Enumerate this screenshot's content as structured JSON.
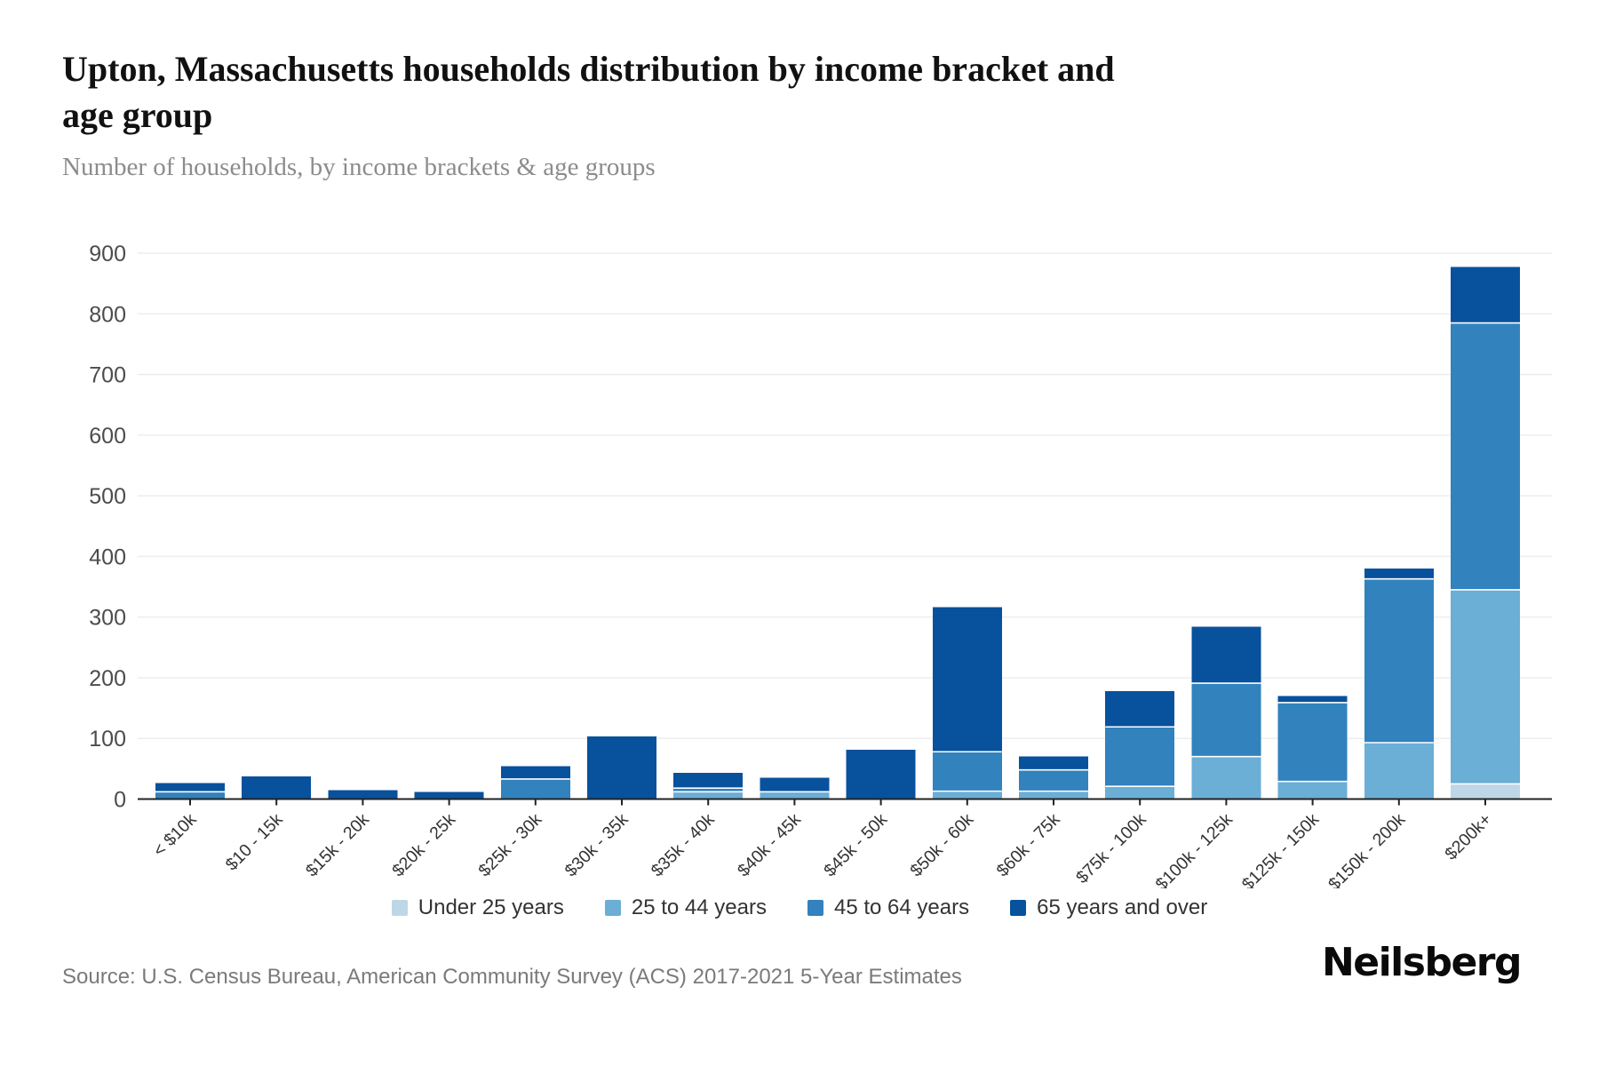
{
  "header": {
    "title": "Upton, Massachusetts households distribution by income bracket and age group",
    "title_lines": [
      "Upton, Massachusetts households distribution by income bracket and",
      "age group"
    ],
    "subtitle": "Number of households, by income brackets & age groups"
  },
  "chart_data": {
    "type": "bar",
    "stacked": true,
    "title": "Upton, Massachusetts households distribution by income bracket and age group",
    "subtitle": "Number of households, by income brackets & age groups",
    "xlabel": "",
    "ylabel": "",
    "ylim": [
      0,
      900
    ],
    "ytick_step": 100,
    "yticks": [
      0,
      100,
      200,
      300,
      400,
      500,
      600,
      700,
      800,
      900
    ],
    "grid": true,
    "legend_position": "bottom",
    "categories": [
      "< $10k",
      "$10 - 15k",
      "$15k - 20k",
      "$20k - 25k",
      "$25k - 30k",
      "$30k - 35k",
      "$35k - 40k",
      "$40k - 45k",
      "$45k - 50k",
      "$50k - 60k",
      "$60k - 75k",
      "$75k - 100k",
      "$100k - 125k",
      "$125k - 150k",
      "$150k - 200k",
      "$200k+"
    ],
    "series": [
      {
        "name": "Under 25 years",
        "color": "#bdd7e7",
        "values": [
          0,
          0,
          0,
          0,
          0,
          0,
          0,
          0,
          0,
          0,
          0,
          0,
          0,
          0,
          0,
          25
        ]
      },
      {
        "name": "25 to 44 years",
        "color": "#6baed6",
        "values": [
          0,
          0,
          0,
          0,
          0,
          0,
          12,
          12,
          0,
          13,
          13,
          21,
          70,
          29,
          93,
          320
        ]
      },
      {
        "name": "45 to 64 years",
        "color": "#3182bd",
        "values": [
          12,
          0,
          0,
          0,
          33,
          0,
          6,
          0,
          0,
          65,
          35,
          98,
          121,
          130,
          270,
          440
        ]
      },
      {
        "name": "65 years and over",
        "color": "#08519c",
        "values": [
          14,
          37,
          15,
          12,
          21,
          103,
          25,
          23,
          81,
          238,
          22,
          59,
          93,
          11,
          17,
          92
        ]
      }
    ],
    "totals": [
      26,
      37,
      15,
      12,
      54,
      103,
      43,
      35,
      81,
      316,
      70,
      178,
      284,
      170,
      380,
      877
    ]
  },
  "colors": {
    "grid": "#ededed",
    "axis": "#222222",
    "ytick_label": "#4c4c4c",
    "xtick_label": "#333333"
  },
  "footer": {
    "source": "Source: U.S. Census Bureau, American Community Survey (ACS) 2017-2021 5-Year Estimates",
    "brand": "Neilsberg"
  }
}
